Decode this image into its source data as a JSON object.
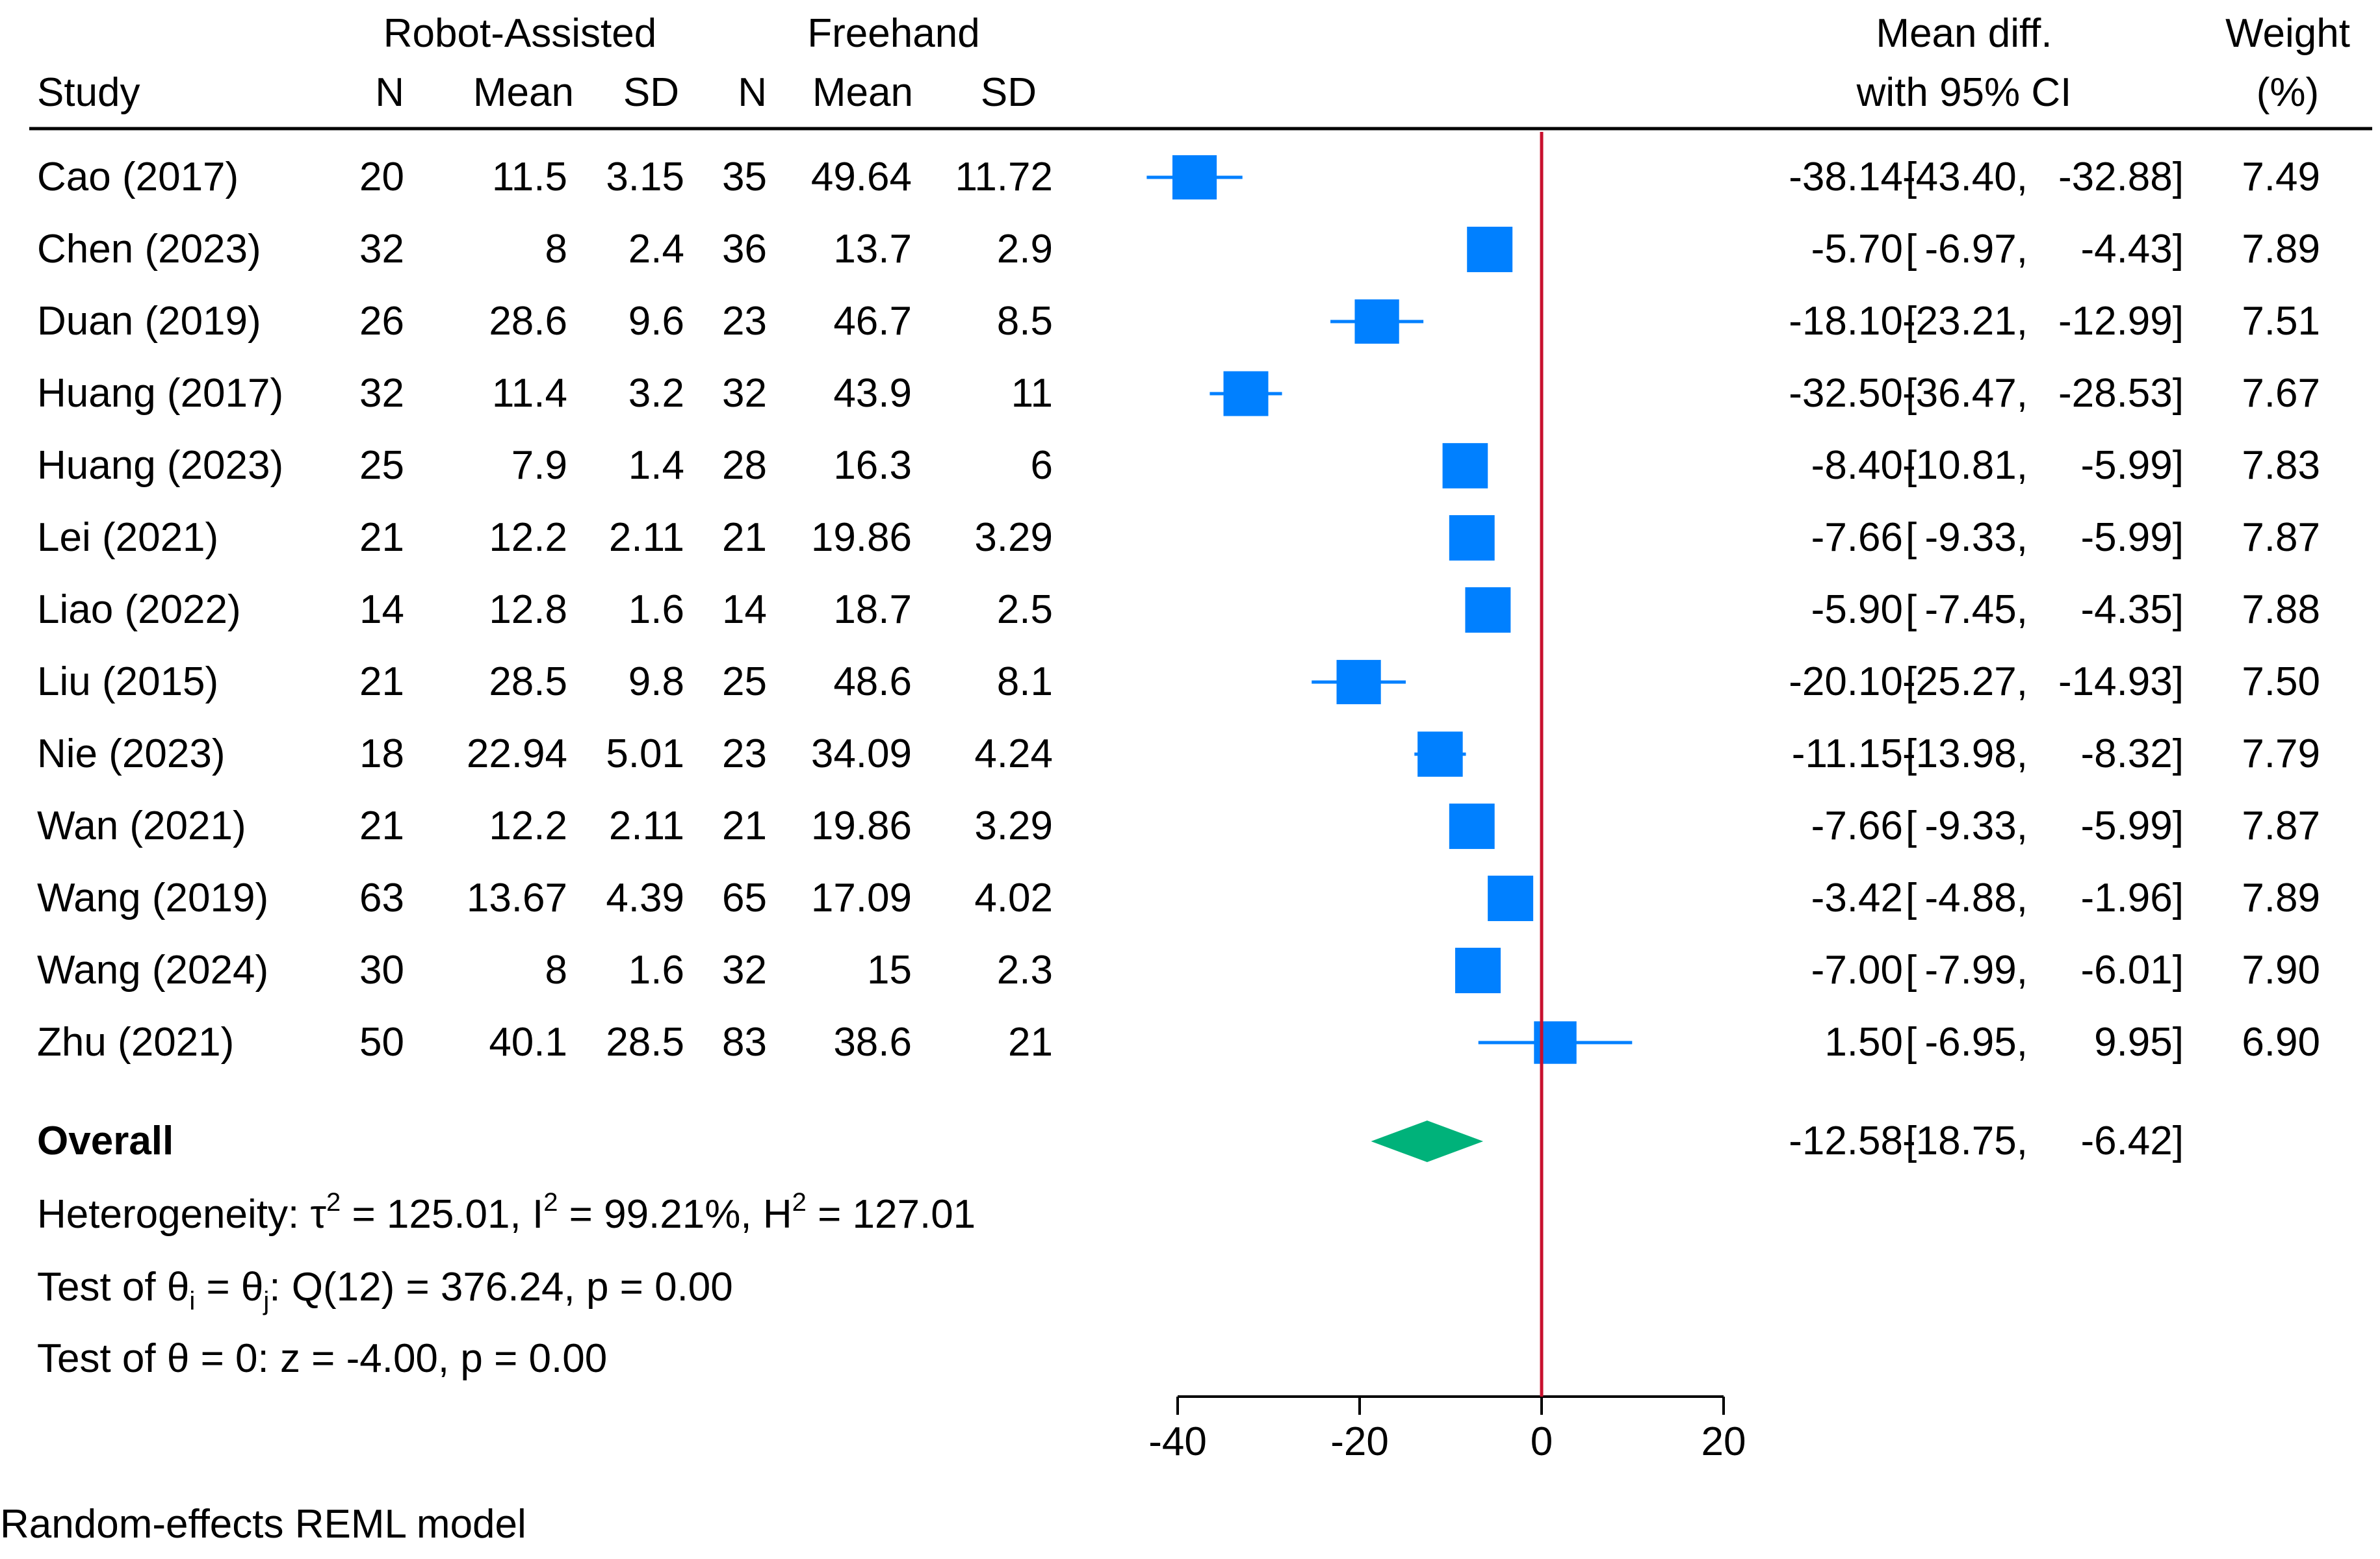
{
  "colors": {
    "marker": "#0080ff",
    "overall": "#00b27a",
    "null_line": "#c8102e",
    "text": "#000000"
  },
  "chart_data": {
    "type": "forest",
    "model_note": "Random-effects REML model",
    "header": {
      "study": "Study",
      "group1": "Robot-Assisted",
      "group2": "Freehand",
      "n": "N",
      "mean": "Mean",
      "sd": "SD",
      "effect_line1": "Mean diff.",
      "effect_line2": "with 95% CI",
      "weight_line1": "Weight",
      "weight_line2": "(%)"
    },
    "studies": [
      {
        "study": "Cao (2017)",
        "n1": "20",
        "mean1": "11.5",
        "sd1": "3.15",
        "n2": "35",
        "mean2": "49.64",
        "sd2": "11.72",
        "md": -38.14,
        "lo": -43.4,
        "hi": -32.88,
        "md_text": "-38.14",
        "lo_text": "-43.40,",
        "hi_text": "-32.88]",
        "weight": 7.49,
        "weight_text": "7.49"
      },
      {
        "study": "Chen (2023)",
        "n1": "32",
        "mean1": "8",
        "sd1": "2.4",
        "n2": "36",
        "mean2": "13.7",
        "sd2": "2.9",
        "md": -5.7,
        "lo": -6.97,
        "hi": -4.43,
        "md_text": "-5.70",
        "lo_text": "-6.97,",
        "hi_text": "-4.43]",
        "weight": 7.89,
        "weight_text": "7.89"
      },
      {
        "study": "Duan (2019)",
        "n1": "26",
        "mean1": "28.6",
        "sd1": "9.6",
        "n2": "23",
        "mean2": "46.7",
        "sd2": "8.5",
        "md": -18.1,
        "lo": -23.21,
        "hi": -12.99,
        "md_text": "-18.10",
        "lo_text": "-23.21,",
        "hi_text": "-12.99]",
        "weight": 7.51,
        "weight_text": "7.51"
      },
      {
        "study": "Huang (2017)",
        "n1": "32",
        "mean1": "11.4",
        "sd1": "3.2",
        "n2": "32",
        "mean2": "43.9",
        "sd2": "11",
        "md": -32.5,
        "lo": -36.47,
        "hi": -28.53,
        "md_text": "-32.50",
        "lo_text": "-36.47,",
        "hi_text": "-28.53]",
        "weight": 7.67,
        "weight_text": "7.67"
      },
      {
        "study": "Huang (2023)",
        "n1": "25",
        "mean1": "7.9",
        "sd1": "1.4",
        "n2": "28",
        "mean2": "16.3",
        "sd2": "6",
        "md": -8.4,
        "lo": -10.81,
        "hi": -5.99,
        "md_text": "-8.40",
        "lo_text": "-10.81,",
        "hi_text": "-5.99]",
        "weight": 7.83,
        "weight_text": "7.83"
      },
      {
        "study": "Lei (2021)",
        "n1": "21",
        "mean1": "12.2",
        "sd1": "2.11",
        "n2": "21",
        "mean2": "19.86",
        "sd2": "3.29",
        "md": -7.66,
        "lo": -9.33,
        "hi": -5.99,
        "md_text": "-7.66",
        "lo_text": "-9.33,",
        "hi_text": "-5.99]",
        "weight": 7.87,
        "weight_text": "7.87"
      },
      {
        "study": "Liao (2022)",
        "n1": "14",
        "mean1": "12.8",
        "sd1": "1.6",
        "n2": "14",
        "mean2": "18.7",
        "sd2": "2.5",
        "md": -5.9,
        "lo": -7.45,
        "hi": -4.35,
        "md_text": "-5.90",
        "lo_text": "-7.45,",
        "hi_text": "-4.35]",
        "weight": 7.88,
        "weight_text": "7.88"
      },
      {
        "study": "Liu (2015)",
        "n1": "21",
        "mean1": "28.5",
        "sd1": "9.8",
        "n2": "25",
        "mean2": "48.6",
        "sd2": "8.1",
        "md": -20.1,
        "lo": -25.27,
        "hi": -14.93,
        "md_text": "-20.10",
        "lo_text": "-25.27,",
        "hi_text": "-14.93]",
        "weight": 7.5,
        "weight_text": "7.50"
      },
      {
        "study": "Nie (2023)",
        "n1": "18",
        "mean1": "22.94",
        "sd1": "5.01",
        "n2": "23",
        "mean2": "34.09",
        "sd2": "4.24",
        "md": -11.15,
        "lo": -13.98,
        "hi": -8.32,
        "md_text": "-11.15",
        "lo_text": "-13.98,",
        "hi_text": "-8.32]",
        "weight": 7.79,
        "weight_text": "7.79"
      },
      {
        "study": "Wan (2021)",
        "n1": "21",
        "mean1": "12.2",
        "sd1": "2.11",
        "n2": "21",
        "mean2": "19.86",
        "sd2": "3.29",
        "md": -7.66,
        "lo": -9.33,
        "hi": -5.99,
        "md_text": "-7.66",
        "lo_text": "-9.33,",
        "hi_text": "-5.99]",
        "weight": 7.87,
        "weight_text": "7.87"
      },
      {
        "study": "Wang (2019)",
        "n1": "63",
        "mean1": "13.67",
        "sd1": "4.39",
        "n2": "65",
        "mean2": "17.09",
        "sd2": "4.02",
        "md": -3.42,
        "lo": -4.88,
        "hi": -1.96,
        "md_text": "-3.42",
        "lo_text": "-4.88,",
        "hi_text": "-1.96]",
        "weight": 7.89,
        "weight_text": "7.89"
      },
      {
        "study": "Wang (2024)",
        "n1": "30",
        "mean1": "8",
        "sd1": "1.6",
        "n2": "32",
        "mean2": "15",
        "sd2": "2.3",
        "md": -7.0,
        "lo": -7.99,
        "hi": -6.01,
        "md_text": "-7.00",
        "lo_text": "-7.99,",
        "hi_text": "-6.01]",
        "weight": 7.9,
        "weight_text": "7.90"
      },
      {
        "study": "Zhu (2021)",
        "n1": "50",
        "mean1": "40.1",
        "sd1": "28.5",
        "n2": "83",
        "mean2": "38.6",
        "sd2": "21",
        "md": 1.5,
        "lo": -6.95,
        "hi": 9.95,
        "md_text": "1.50",
        "lo_text": "-6.95,",
        "hi_text": "9.95]",
        "weight": 6.9,
        "weight_text": "6.90"
      }
    ],
    "overall": {
      "label": "Overall",
      "md": -12.58,
      "lo": -18.75,
      "hi": -6.42,
      "md_text": "-12.58",
      "lo_text": "-18.75,",
      "hi_text": "-6.42]"
    },
    "heterogeneity": {
      "prefix": "Heterogeneity: ",
      "tau": "τ",
      "tau_val": " = 125.01, I",
      "i_val": " = 99.21%, H",
      "h_val": " = 127.01",
      "sup": "2"
    },
    "test_equal": {
      "prefix": "Test of θ",
      "sub_i": "i",
      "mid": " = θ",
      "sub_j": "j",
      "suffix": ": Q(12) = 376.24, p = 0.00"
    },
    "test_zero": "Test of θ = 0: z = -4.00, p = 0.00",
    "x_axis": {
      "min": -40,
      "max": 20,
      "ticks": [
        -40,
        -20,
        0,
        20
      ],
      "tick_labels": [
        "-40",
        "-20",
        "0",
        "20"
      ],
      "null_value": 0
    }
  }
}
